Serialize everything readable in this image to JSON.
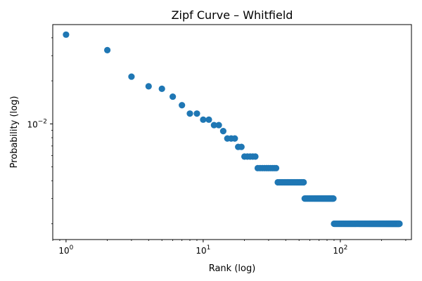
{
  "chart_data": {
    "type": "scatter",
    "title": "Zipf Curve – Whitfield",
    "xlabel": "Rank (log)",
    "ylabel": "Probability (log)",
    "xscale": "log",
    "yscale": "log",
    "xlim": [
      0.8,
      330
    ],
    "ylim": [
      0.00155,
      0.0495
    ],
    "grid": false,
    "legend": "none",
    "color": "#1f77b4",
    "x_ticks": [
      {
        "value": 1,
        "base": "10",
        "exp": "0"
      },
      {
        "value": 10,
        "base": "10",
        "exp": "1"
      },
      {
        "value": 100,
        "base": "10",
        "exp": "2"
      }
    ],
    "y_ticks": [
      {
        "value": 0.01,
        "base": "10",
        "exp": "−2"
      }
    ],
    "segments": [
      {
        "ranks": [
          1
        ],
        "y": 0.0421
      },
      {
        "ranks": [
          2
        ],
        "y": 0.0328
      },
      {
        "ranks": [
          3
        ],
        "y": 0.0214
      },
      {
        "ranks": [
          4
        ],
        "y": 0.0183
      },
      {
        "ranks": [
          5
        ],
        "y": 0.0176
      },
      {
        "ranks": [
          6
        ],
        "y": 0.0155
      },
      {
        "ranks": [
          7
        ],
        "y": 0.0135
      },
      {
        "ranks": [
          8,
          9
        ],
        "y": 0.0118
      },
      {
        "ranks": [
          10,
          11
        ],
        "y": 0.0107
      },
      {
        "ranks": [
          12,
          13
        ],
        "y": 0.0098
      },
      {
        "ranks": [
          14
        ],
        "y": 0.0089
      },
      {
        "ranks": [
          15,
          17
        ],
        "y": 0.0079
      },
      {
        "ranks": [
          18,
          19
        ],
        "y": 0.0069
      },
      {
        "ranks": [
          20,
          24
        ],
        "y": 0.0059
      },
      {
        "ranks": [
          25,
          34
        ],
        "y": 0.0049
      },
      {
        "ranks": [
          35,
          54
        ],
        "y": 0.0039
      },
      {
        "ranks": [
          55,
          89
        ],
        "y": 0.003
      },
      {
        "ranks": [
          90,
          270
        ],
        "y": 0.002
      }
    ]
  }
}
